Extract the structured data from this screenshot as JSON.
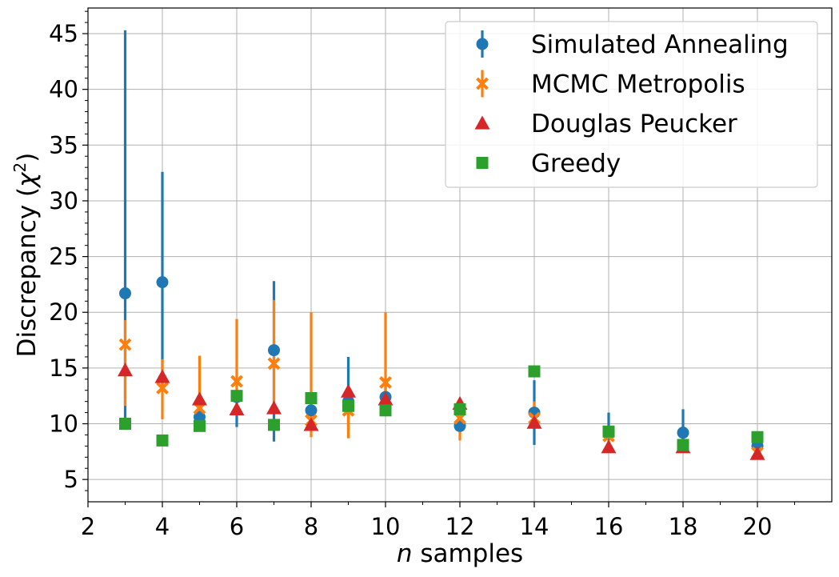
{
  "chart_data": {
    "type": "scatter",
    "xlabel_italic": "n",
    "xlabel_rest": " samples",
    "ylabel_main": "Discrepancy (",
    "ylabel_symbol": "χ",
    "ylabel_sup": "2",
    "ylabel_close": ")",
    "xlim": [
      2,
      22
    ],
    "ylim": [
      3,
      47.3
    ],
    "xticks": [
      2,
      4,
      6,
      8,
      10,
      12,
      14,
      16,
      18,
      20
    ],
    "yticks": [
      5,
      10,
      15,
      20,
      25,
      30,
      35,
      40,
      45
    ],
    "grid": true,
    "legend_position": "top-right",
    "series": [
      {
        "name": "Simulated Annealing",
        "marker": "circle",
        "color": "#1f77b4",
        "points": [
          {
            "x": 3,
            "y": 21.7,
            "low": 9.9,
            "high": 45.3
          },
          {
            "x": 4,
            "y": 22.7,
            "low": 13.2,
            "high": 32.6
          },
          {
            "x": 5,
            "y": 10.6,
            "low": 10.1,
            "high": 11.2
          },
          {
            "x": 6,
            "y": 12.4,
            "low": 9.7,
            "high": 12.9
          },
          {
            "x": 7,
            "y": 16.6,
            "low": 8.4,
            "high": 22.8
          },
          {
            "x": 8,
            "y": 11.2,
            "low": 10.6,
            "high": 11.8
          },
          {
            "x": 9,
            "y": 12.0,
            "low": 9.4,
            "high": 16.0
          },
          {
            "x": 10,
            "y": 12.4,
            "low": 11.6,
            "high": 13.3
          },
          {
            "x": 12,
            "y": 9.8,
            "low": 9.3,
            "high": 10.3
          },
          {
            "x": 14,
            "y": 11.0,
            "low": 8.1,
            "high": 13.9
          },
          {
            "x": 16,
            "y": 9.1,
            "low": 8.3,
            "high": 11.0
          },
          {
            "x": 18,
            "y": 9.2,
            "low": 8.0,
            "high": 11.3
          },
          {
            "x": 20,
            "y": 8.0,
            "low": 7.5,
            "high": 8.5
          }
        ]
      },
      {
        "name": "MCMC Metropolis",
        "marker": "x",
        "color": "#ff7f0e",
        "points": [
          {
            "x": 3,
            "y": 17.1,
            "low": 11.6,
            "high": 19.3
          },
          {
            "x": 4,
            "y": 13.2,
            "low": 10.4,
            "high": 15.8
          },
          {
            "x": 5,
            "y": 11.4,
            "low": 10.7,
            "high": 16.1
          },
          {
            "x": 6,
            "y": 13.8,
            "low": 11.0,
            "high": 19.4
          },
          {
            "x": 7,
            "y": 15.4,
            "low": 11.3,
            "high": 21.1
          },
          {
            "x": 8,
            "y": 10.3,
            "low": 8.8,
            "high": 20.0
          },
          {
            "x": 9,
            "y": 11.2,
            "low": 8.7,
            "high": 12.3
          },
          {
            "x": 10,
            "y": 13.7,
            "low": 12.9,
            "high": 20.0
          },
          {
            "x": 12,
            "y": 10.5,
            "low": 8.5,
            "high": 11.5
          },
          {
            "x": 14,
            "y": 10.5,
            "low": 10.0,
            "high": 12.0
          },
          {
            "x": 16,
            "y": 8.9,
            "low": 8.4,
            "high": 9.4
          },
          {
            "x": 18,
            "y": 7.9,
            "low": 7.6,
            "high": 8.2
          },
          {
            "x": 20,
            "y": 7.4,
            "low": 7.2,
            "high": 7.6
          }
        ]
      },
      {
        "name": "Douglas Peucker",
        "marker": "triangle",
        "color": "#d62728",
        "points": [
          {
            "x": 3,
            "y": 14.8
          },
          {
            "x": 4,
            "y": 14.2
          },
          {
            "x": 5,
            "y": 12.2
          },
          {
            "x": 6,
            "y": 11.3
          },
          {
            "x": 7,
            "y": 11.4
          },
          {
            "x": 8,
            "y": 9.9
          },
          {
            "x": 9,
            "y": 12.9
          },
          {
            "x": 10,
            "y": 12.2
          },
          {
            "x": 12,
            "y": 11.8
          },
          {
            "x": 14,
            "y": 10.1
          },
          {
            "x": 16,
            "y": 7.9
          },
          {
            "x": 18,
            "y": 7.9
          },
          {
            "x": 20,
            "y": 7.3
          }
        ]
      },
      {
        "name": "Greedy",
        "marker": "square",
        "color": "#2ca02c",
        "points": [
          {
            "x": 3,
            "y": 10.0
          },
          {
            "x": 4,
            "y": 8.5
          },
          {
            "x": 5,
            "y": 9.8
          },
          {
            "x": 6,
            "y": 12.5
          },
          {
            "x": 7,
            "y": 9.9
          },
          {
            "x": 8,
            "y": 12.3
          },
          {
            "x": 9,
            "y": 11.6
          },
          {
            "x": 10,
            "y": 11.2
          },
          {
            "x": 12,
            "y": 11.3
          },
          {
            "x": 14,
            "y": 14.7
          },
          {
            "x": 16,
            "y": 9.3
          },
          {
            "x": 18,
            "y": 8.1
          },
          {
            "x": 20,
            "y": 8.8
          }
        ]
      }
    ]
  }
}
